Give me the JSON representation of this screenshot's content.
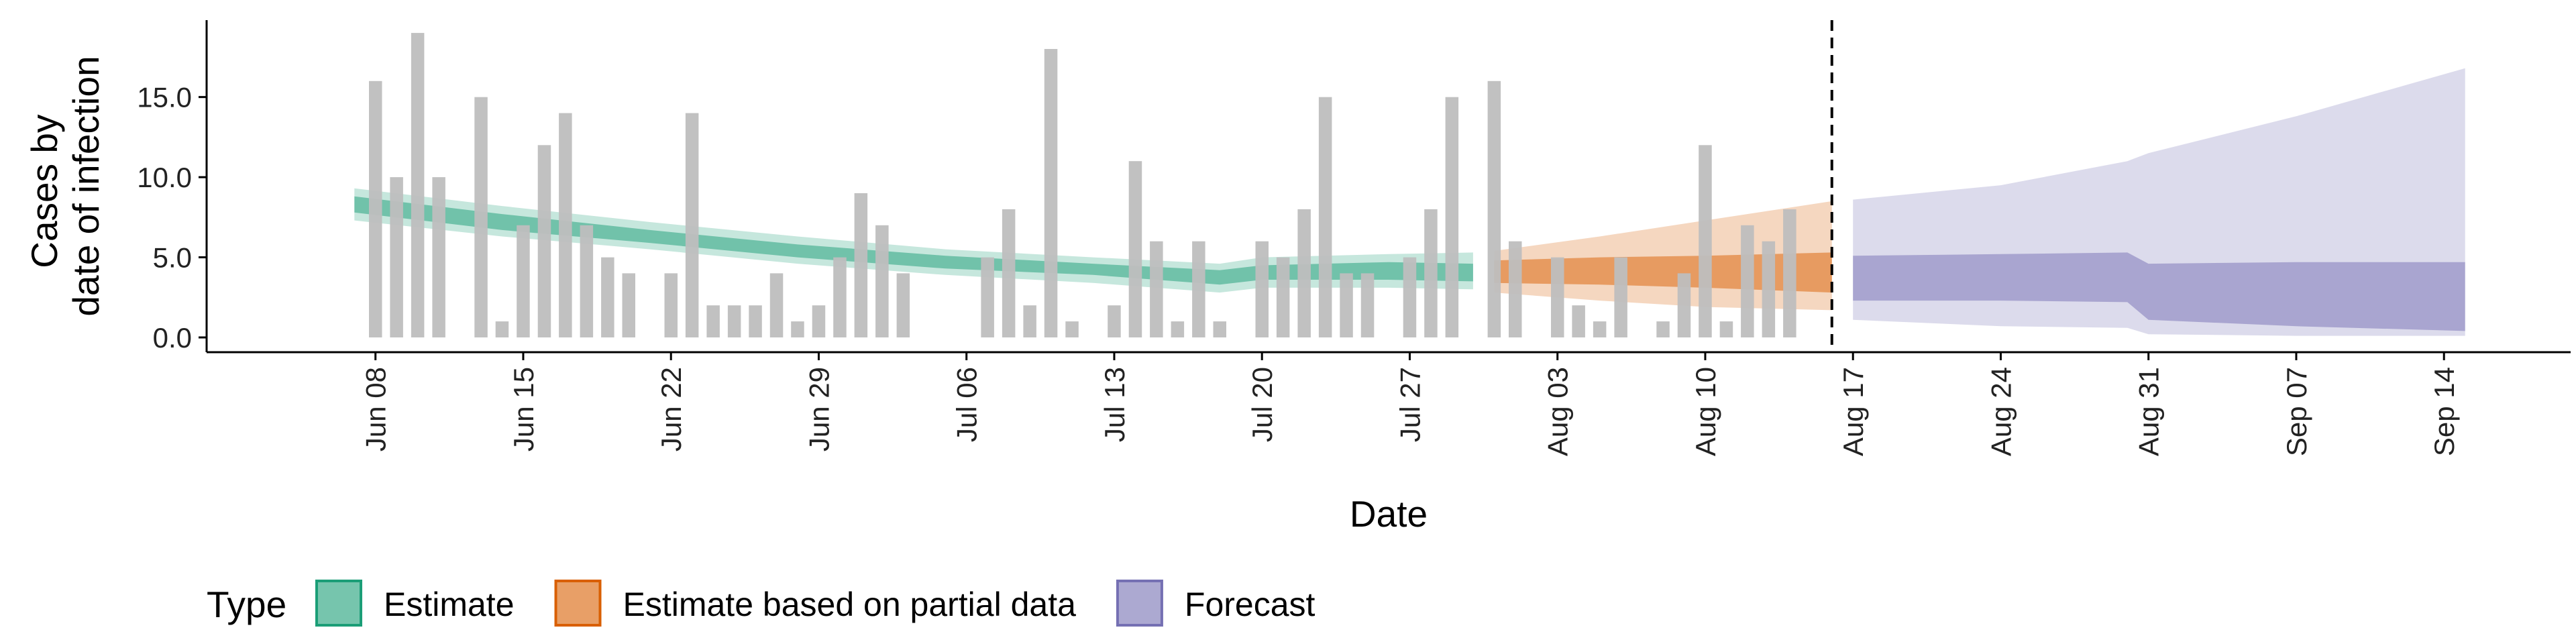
{
  "chart_data": {
    "type": "bar+area",
    "xlabel": "Date",
    "ylabel_lines": [
      "Cases by",
      "date of infection"
    ],
    "ylim": [
      0,
      19.8
    ],
    "yticks": [
      0,
      5,
      10,
      15
    ],
    "ytick_labels": [
      "0.0",
      "5.0",
      "10.0",
      "15.0"
    ],
    "xticks": [
      "2020-06-08",
      "2020-06-15",
      "2020-06-22",
      "2020-06-29",
      "2020-07-06",
      "2020-07-13",
      "2020-07-20",
      "2020-07-27",
      "2020-08-03",
      "2020-08-10",
      "2020-08-17",
      "2020-08-24",
      "2020-08-31",
      "2020-09-07",
      "2020-09-14"
    ],
    "xtick_labels": [
      "Jun 08",
      "Jun 15",
      "Jun 22",
      "Jun 29",
      "Jul 06",
      "Jul 13",
      "Jul 20",
      "Jul 27",
      "Aug 03",
      "Aug 10",
      "Aug 17",
      "Aug 24",
      "Aug 31",
      "Sep 07",
      "Sep 14"
    ],
    "xlim": [
      "2020-05-31",
      "2020-09-20"
    ],
    "vline_date": "2020-08-16",
    "bars": {
      "dates": [
        "2020-06-08",
        "2020-06-09",
        "2020-06-10",
        "2020-06-11",
        "2020-06-12",
        "2020-06-13",
        "2020-06-14",
        "2020-06-15",
        "2020-06-16",
        "2020-06-17",
        "2020-06-18",
        "2020-06-19",
        "2020-06-20",
        "2020-06-21",
        "2020-06-22",
        "2020-06-23",
        "2020-06-24",
        "2020-06-25",
        "2020-06-26",
        "2020-06-27",
        "2020-06-28",
        "2020-06-29",
        "2020-06-30",
        "2020-07-01",
        "2020-07-02",
        "2020-07-03",
        "2020-07-04",
        "2020-07-05",
        "2020-07-06",
        "2020-07-07",
        "2020-07-08",
        "2020-07-09",
        "2020-07-10",
        "2020-07-11",
        "2020-07-12",
        "2020-07-13",
        "2020-07-14",
        "2020-07-15",
        "2020-07-16",
        "2020-07-17",
        "2020-07-18",
        "2020-07-19",
        "2020-07-20",
        "2020-07-21",
        "2020-07-22",
        "2020-07-23",
        "2020-07-24",
        "2020-07-25",
        "2020-07-26",
        "2020-07-27",
        "2020-07-28",
        "2020-07-29",
        "2020-07-30",
        "2020-07-31",
        "2020-08-01",
        "2020-08-02",
        "2020-08-03",
        "2020-08-04",
        "2020-08-05",
        "2020-08-06",
        "2020-08-07",
        "2020-08-08",
        "2020-08-09",
        "2020-08-10",
        "2020-08-11",
        "2020-08-12",
        "2020-08-13",
        "2020-08-14",
        "2020-08-15"
      ],
      "values": [
        16,
        10,
        19,
        10,
        0,
        15,
        1,
        7,
        12,
        14,
        7,
        5,
        4,
        0,
        4,
        14,
        2,
        2,
        2,
        4,
        1,
        2,
        5,
        9,
        7,
        4,
        0,
        0,
        0,
        5,
        8,
        2,
        18,
        1,
        0,
        2,
        11,
        6,
        1,
        6,
        1,
        0,
        6,
        5,
        8,
        15,
        4,
        4,
        0,
        5,
        8,
        15,
        0,
        16,
        6,
        0,
        5,
        2,
        1,
        5,
        0,
        1,
        4,
        12,
        1,
        7,
        6,
        8,
        0
      ],
      "color": "#bebebe"
    },
    "series": [
      {
        "name": "Estimate",
        "color": "#1b9e77",
        "dates": [
          "2020-06-07",
          "2020-06-14",
          "2020-06-21",
          "2020-06-28",
          "2020-07-05",
          "2020-07-12",
          "2020-07-18",
          "2020-07-20",
          "2020-07-26",
          "2020-07-30"
        ],
        "outer_lower": [
          7.3,
          6.3,
          5.5,
          4.6,
          3.9,
          3.4,
          2.8,
          3.1,
          3.1,
          3.0
        ],
        "outer_upper": [
          9.3,
          8.2,
          7.2,
          6.3,
          5.5,
          5.0,
          4.6,
          5.0,
          5.2,
          5.3
        ],
        "inner_lower": [
          7.8,
          6.7,
          5.9,
          5.0,
          4.3,
          3.9,
          3.3,
          3.6,
          3.6,
          3.5
        ],
        "inner_upper": [
          8.8,
          7.7,
          6.7,
          5.8,
          5.1,
          4.6,
          4.2,
          4.5,
          4.7,
          4.6
        ]
      },
      {
        "name": "Estimate based on partial data",
        "color": "#d95f02",
        "dates": [
          "2020-07-31",
          "2020-08-05",
          "2020-08-10",
          "2020-08-16"
        ],
        "outer_lower": [
          2.8,
          2.3,
          1.9,
          1.7
        ],
        "outer_upper": [
          5.4,
          6.3,
          7.3,
          8.5
        ],
        "inner_lower": [
          3.4,
          3.3,
          3.1,
          2.8
        ],
        "inner_upper": [
          4.8,
          5.0,
          5.1,
          5.3
        ]
      },
      {
        "name": "Forecast",
        "color": "#7570b3",
        "dates": [
          "2020-08-17",
          "2020-08-24",
          "2020-08-30",
          "2020-08-31",
          "2020-09-07",
          "2020-09-15"
        ],
        "outer_lower": [
          1.1,
          0.7,
          0.6,
          0.2,
          0.1,
          0.1
        ],
        "outer_upper": [
          8.6,
          9.5,
          11.0,
          11.5,
          13.8,
          16.8
        ],
        "inner_lower": [
          2.3,
          2.3,
          2.2,
          1.1,
          0.7,
          0.4
        ],
        "inner_upper": [
          5.1,
          5.2,
          5.3,
          4.6,
          4.7,
          4.7
        ]
      }
    ],
    "legend": {
      "title": "Type",
      "placement": "bottom-left",
      "items": [
        {
          "label": "Estimate",
          "color": "#1b9e77"
        },
        {
          "label": "Estimate based on partial data",
          "color": "#d95f02"
        },
        {
          "label": "Forecast",
          "color": "#7570b3"
        }
      ]
    }
  }
}
